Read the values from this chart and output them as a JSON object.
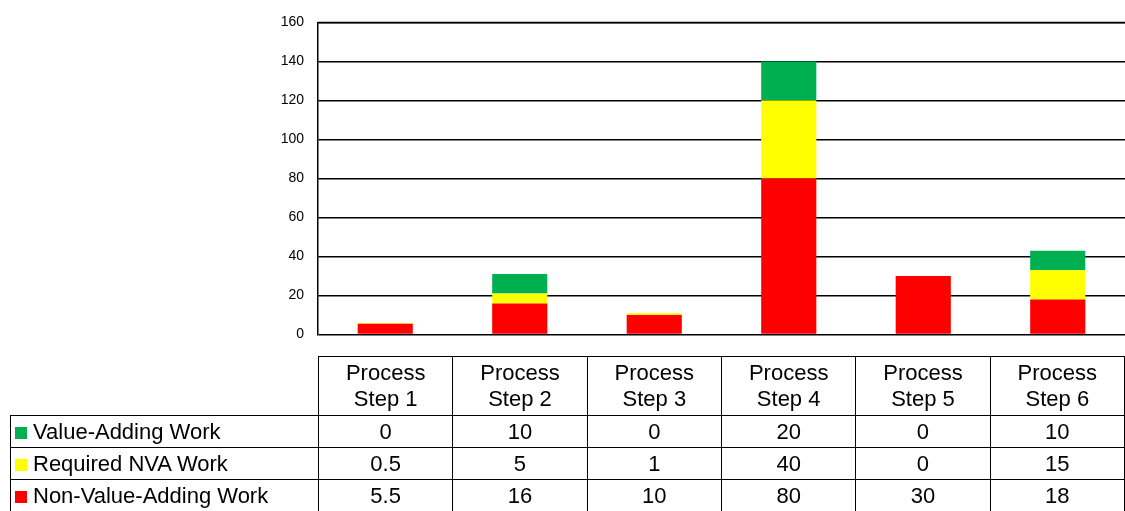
{
  "chart_data": {
    "type": "bar",
    "stacked": true,
    "categories": [
      "Process Step 1",
      "Process Step 2",
      "Process Step 3",
      "Process Step 4",
      "Process Step 5",
      "Process Step 6"
    ],
    "series": [
      {
        "name": "Non-Value-Adding Work",
        "color": "#ff0000",
        "values": [
          5.5,
          16,
          10,
          80,
          30,
          18
        ]
      },
      {
        "name": "Required NVA Work",
        "color": "#ffff00",
        "values": [
          0.5,
          5,
          1,
          40,
          0,
          15
        ]
      },
      {
        "name": "Value-Adding Work",
        "color": "#00b050",
        "values": [
          0,
          10,
          0,
          20,
          0,
          10
        ]
      }
    ],
    "ylim": [
      0,
      160
    ],
    "yticks": [
      0,
      20,
      40,
      60,
      80,
      100,
      120,
      140,
      160
    ],
    "grid": "y",
    "data_labels": true,
    "legend": "bottom left"
  }
}
